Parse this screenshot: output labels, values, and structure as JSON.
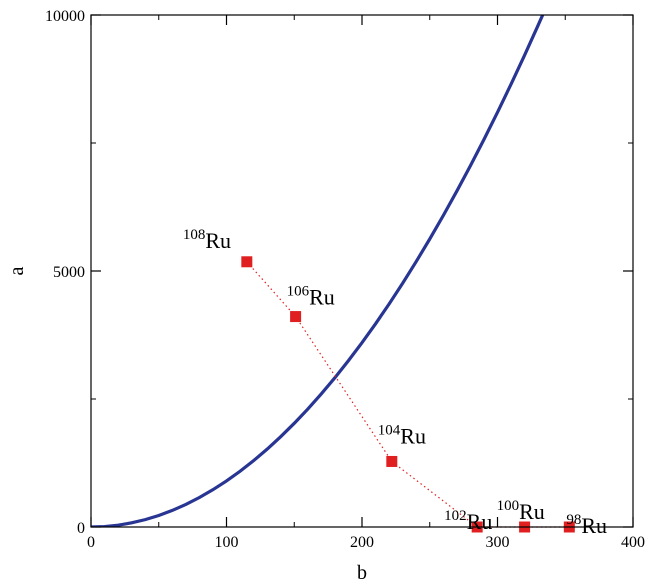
{
  "chart_data": {
    "type": "scatter",
    "xlabel": "b",
    "ylabel": "a",
    "xlim": [
      0,
      400
    ],
    "ylim": [
      0,
      10000
    ],
    "x_ticks": [
      0,
      100,
      200,
      300,
      400
    ],
    "y_ticks": [
      0,
      5000,
      10000
    ],
    "x_minor_ticks": [
      50,
      150,
      250,
      350
    ],
    "y_minor_ticks": [
      2500,
      7500
    ],
    "grid": false,
    "series": [
      {
        "kind": "curve",
        "color": "#283593",
        "x": [
          0,
          10,
          20,
          30,
          40,
          50,
          60,
          70,
          80,
          90,
          100,
          110,
          120,
          130,
          140,
          150,
          160,
          170,
          180,
          190,
          200,
          210,
          220,
          230,
          240,
          250,
          260,
          270,
          280,
          290,
          300,
          310,
          320,
          330,
          334
        ],
        "y": [
          0,
          9,
          36,
          81,
          144,
          225,
          324,
          441,
          576,
          729,
          900,
          1089,
          1296,
          1521,
          1764,
          2025,
          2304,
          2601,
          2916,
          3249,
          3600,
          3969,
          4356,
          4761,
          5184,
          5625,
          6084,
          6561,
          7056,
          7569,
          8100,
          8649,
          9216,
          9801,
          10040
        ]
      },
      {
        "kind": "points",
        "color": "#e02020",
        "line_style": "dotted",
        "points": [
          {
            "x": 115,
            "y": 5180,
            "mass": "108",
            "element": "Ru"
          },
          {
            "x": 151,
            "y": 4110,
            "mass": "106",
            "element": "Ru"
          },
          {
            "x": 222,
            "y": 1280,
            "mass": "104",
            "element": "Ru"
          },
          {
            "x": 285,
            "y": 0,
            "mass": "102",
            "element": "Ru"
          },
          {
            "x": 320,
            "y": 0,
            "mass": "100",
            "element": "Ru"
          },
          {
            "x": 353,
            "y": 0,
            "mass": "98",
            "element": "Ru"
          }
        ]
      }
    ]
  }
}
